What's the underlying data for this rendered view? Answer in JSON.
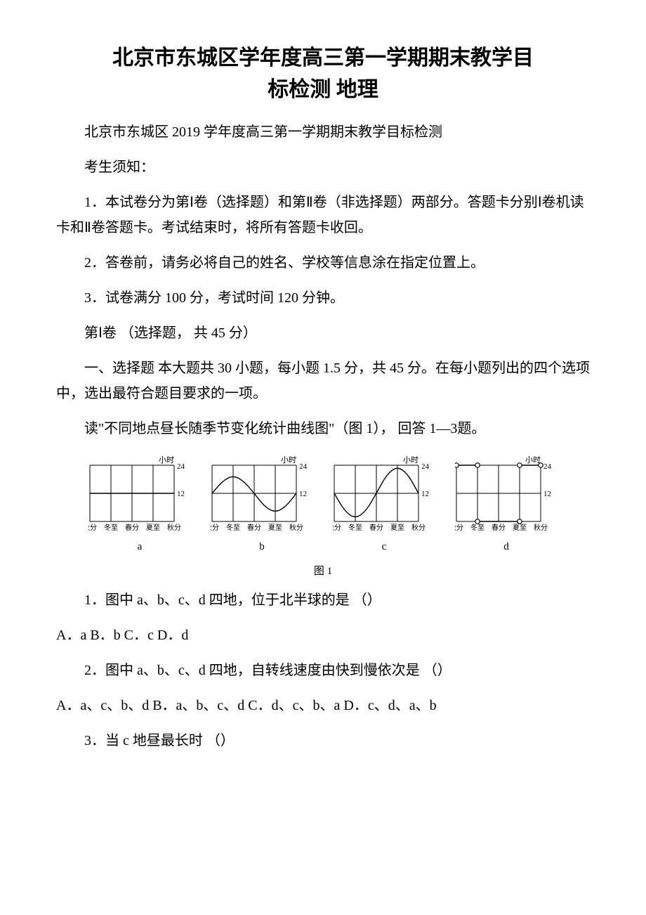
{
  "title_line1": "北京市东城区学年度高三第一学期期末教学目",
  "title_line2": "标检测 地理",
  "p1": "北京市东城区 2019 学年度高三第一学期期末教学目标检测",
  "p2": "考生须知：",
  "p3": "1．本试卷分为第Ⅰ卷（选择题）和第Ⅱ卷（非选择题）两部分。答题卡分别Ⅰ卷机读卡和Ⅱ卷答题卡。考试结束时，将所有答题卡收回。",
  "p4": "2．答卷前，请务必将自己的姓名、学校等信息涂在指定位置上。",
  "p5": "3．试卷满分 100 分，考试时间 120 分钟。",
  "p6": "第Ⅰ卷 （选择题， 共 45 分）",
  "p7": "一、选择题 本大题共 30 小题，每小题 1.5 分，共 45 分。在每小题列出的四个选项中，选出最符合题目要求的一项。",
  "p8": "读\"不同地点昼长随季节变化统计曲线图\"（图 1）， 回答 1—3题。",
  "q1": "1．图中 a、b、c、d 四地，位于北半球的是   （）",
  "q1opts": " A．a B．b C．c D．d",
  "q2": "2．图中 a、b、c、d 四地，自转线速度由快到慢依次是  （）",
  "q2opts": " A．a、c、b、d B．a、b、c、d C．d、c、b、a D．c、d、a、b",
  "q3": "3．当 c 地昼最长时   （）",
  "figure": {
    "caption": "图 1",
    "axis_title": "小时",
    "y_top": "24",
    "y_mid": "12",
    "x_labels": [
      "秋分",
      "冬至",
      "春分",
      "夏至",
      "秋分"
    ],
    "sub_labels": [
      "a",
      "b",
      "c",
      "d"
    ],
    "colors": {
      "stroke": "#000000",
      "bg": "#ffffff",
      "text": "#000000"
    },
    "grid": {
      "width": 120,
      "height": 80,
      "cols": 4,
      "rows": 2
    },
    "panels": [
      {
        "id": "a",
        "curve": [
          [
            0,
            0.5
          ],
          [
            1,
            0.5
          ],
          [
            2,
            0.5
          ],
          [
            3,
            0.5
          ],
          [
            4,
            0.5
          ]
        ],
        "markers": []
      },
      {
        "id": "b",
        "curve": [
          [
            0,
            0.5
          ],
          [
            0.5,
            0.72
          ],
          [
            1,
            0.82
          ],
          [
            1.5,
            0.72
          ],
          [
            2,
            0.5
          ],
          [
            2.5,
            0.26
          ],
          [
            3,
            0.16
          ],
          [
            3.5,
            0.26
          ],
          [
            4,
            0.5
          ]
        ],
        "markers": []
      },
      {
        "id": "c",
        "curve": [
          [
            0,
            0.5
          ],
          [
            0.5,
            0.18
          ],
          [
            1,
            0.05
          ],
          [
            1.5,
            0.18
          ],
          [
            2,
            0.5
          ],
          [
            2.5,
            0.84
          ],
          [
            3,
            0.98
          ],
          [
            3.5,
            0.84
          ],
          [
            4,
            0.5
          ]
        ],
        "markers": []
      },
      {
        "id": "d",
        "curve_segments": [
          [
            [
              0,
              1.0
            ],
            [
              1,
              1.0
            ]
          ],
          [
            [
              1,
              0.0
            ],
            [
              3,
              0.0
            ]
          ],
          [
            [
              3,
              1.0
            ],
            [
              4,
              1.0
            ]
          ]
        ],
        "markers": [
          [
            0,
            1.0
          ],
          [
            1,
            1.0
          ],
          [
            1,
            0.0
          ],
          [
            3,
            0.0
          ],
          [
            3,
            1.0
          ],
          [
            4,
            1.0
          ]
        ]
      }
    ]
  }
}
